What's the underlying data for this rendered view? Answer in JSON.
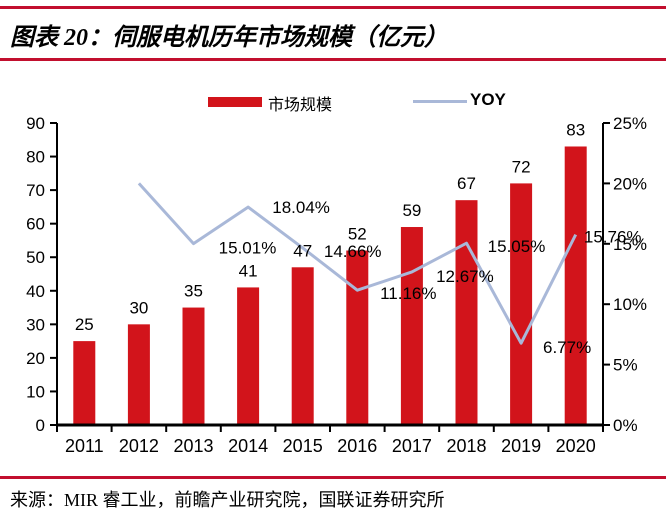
{
  "header": {
    "title": "图表 20：伺服电机历年市场规模（亿元）"
  },
  "footer": {
    "source": "来源：MIR 睿工业，前瞻产业研究院，国联证券研究所"
  },
  "colors": {
    "bar": "#d2141b",
    "line": "#a9b8d8",
    "rule": "#c20f2e",
    "axis": "#000000",
    "text": "#000000"
  },
  "legend": {
    "bar_label": "市场规模",
    "line_label": "YOY"
  },
  "chart_data": {
    "type": "bar",
    "title": "伺服电机历年市场规模（亿元）",
    "categories": [
      "2011",
      "2012",
      "2013",
      "2014",
      "2015",
      "2016",
      "2017",
      "2018",
      "2019",
      "2020"
    ],
    "series": [
      {
        "name": "市场规模",
        "type": "bar",
        "axis": "left",
        "values": [
          25,
          30,
          35,
          41,
          47,
          52,
          59,
          67,
          72,
          83
        ],
        "labels": [
          "25",
          "30",
          "35",
          "41",
          "47",
          "52",
          "59",
          "67",
          "72",
          "83"
        ],
        "color": "#d2141b"
      },
      {
        "name": "YOY",
        "type": "line",
        "axis": "right",
        "start_index": 1,
        "values": [
          20.0,
          15.01,
          18.04,
          14.66,
          11.16,
          12.67,
          15.05,
          6.77,
          15.76
        ],
        "labels": [
          "",
          "15.01%",
          "18.04%",
          "14.66%",
          "11.16%",
          "12.67%",
          "15.05%",
          "6.77%",
          "15.76%"
        ],
        "color": "#a9b8d8"
      }
    ],
    "left_axis": {
      "min": 0,
      "max": 90,
      "step": 10,
      "ticks": [
        "0",
        "10",
        "20",
        "30",
        "40",
        "50",
        "60",
        "70",
        "80",
        "90"
      ]
    },
    "right_axis": {
      "min": 0,
      "max": 25,
      "step": 5,
      "ticks": [
        "0%",
        "5%",
        "10%",
        "15%",
        "20%",
        "25%"
      ]
    },
    "grid": false,
    "legend_position": "top",
    "line_label_dx": [
      0,
      54,
      53,
      50,
      51,
      53,
      50,
      46,
      37
    ],
    "line_label_dy": [
      0,
      4,
      0,
      3,
      3,
      4,
      3,
      4,
      2
    ]
  }
}
